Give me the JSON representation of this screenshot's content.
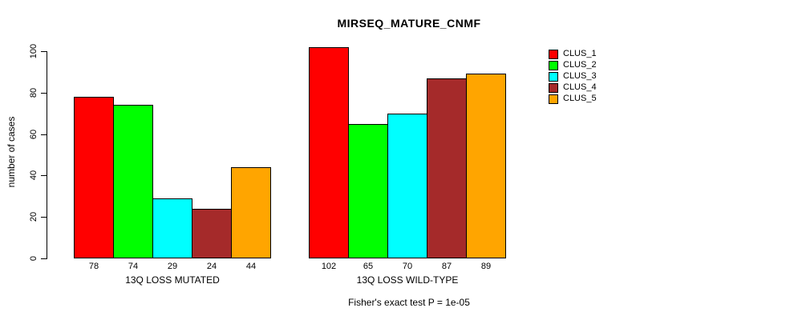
{
  "chart_data": {
    "type": "bar",
    "title": "MIRSEQ_MATURE_CNMF",
    "xlabel": "",
    "ylabel": "number of cases",
    "ylim": [
      0,
      102
    ],
    "yticks": [
      0,
      20,
      40,
      60,
      80,
      100
    ],
    "grid": false,
    "legend_position": "right",
    "bar_value_labels": true,
    "background": "#FFFFFF",
    "categories": [
      "13Q LOSS MUTATED",
      "13Q LOSS WILD-TYPE"
    ],
    "series": [
      {
        "name": "CLUS_1",
        "color": "#FF0000",
        "values": [
          78,
          102
        ]
      },
      {
        "name": "CLUS_2",
        "color": "#00FF00",
        "values": [
          74,
          65
        ]
      },
      {
        "name": "CLUS_3",
        "color": "#00FFFF",
        "values": [
          29,
          70
        ]
      },
      {
        "name": "CLUS_4",
        "color": "#A52A2A",
        "values": [
          24,
          87
        ]
      },
      {
        "name": "CLUS_5",
        "color": "#FFA500",
        "values": [
          44,
          89
        ]
      }
    ],
    "annotation": "Fisher's exact test P = 1e-05"
  }
}
